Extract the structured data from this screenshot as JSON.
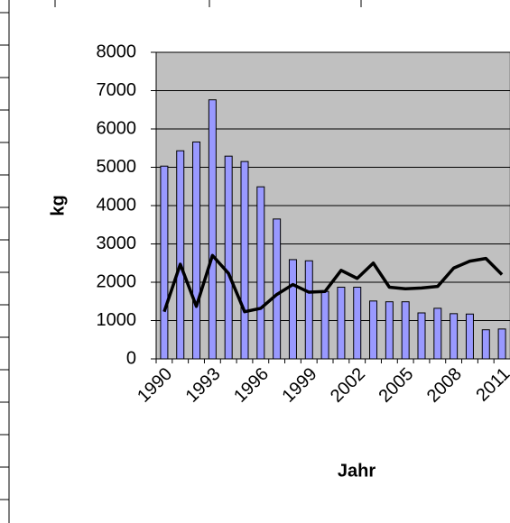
{
  "chart_data": {
    "type": "bar_line",
    "x_label": "Jahr",
    "y_label": "kg",
    "categories": [
      "1990",
      null,
      null,
      "1993",
      null,
      null,
      "1996",
      null,
      null,
      "1999",
      null,
      null,
      "2002",
      null,
      null,
      "2005",
      null,
      null,
      "2008",
      null,
      null,
      "2011"
    ],
    "series": [
      {
        "type": "bar",
        "color": "#9999ff",
        "values": [
          5030,
          5430,
          5660,
          6760,
          5290,
          5150,
          4490,
          3650,
          2590,
          2560,
          1760,
          1870,
          1870,
          1510,
          1490,
          1490,
          1200,
          1320,
          1180,
          1170,
          760,
          780
        ]
      },
      {
        "type": "line",
        "color": "#000000",
        "values": [
          1230,
          2470,
          1370,
          2700,
          2230,
          1230,
          1320,
          1680,
          1940,
          1740,
          1760,
          2310,
          2100,
          2500,
          1870,
          1830,
          1850,
          1890,
          2370,
          2550,
          2620,
          2200
        ]
      }
    ],
    "ylim": [
      0,
      8000
    ],
    "yticks": [
      0,
      1000,
      2000,
      3000,
      4000,
      5000,
      6000,
      7000,
      8000
    ],
    "grid": true,
    "plot_background": "#c0c0c0"
  }
}
